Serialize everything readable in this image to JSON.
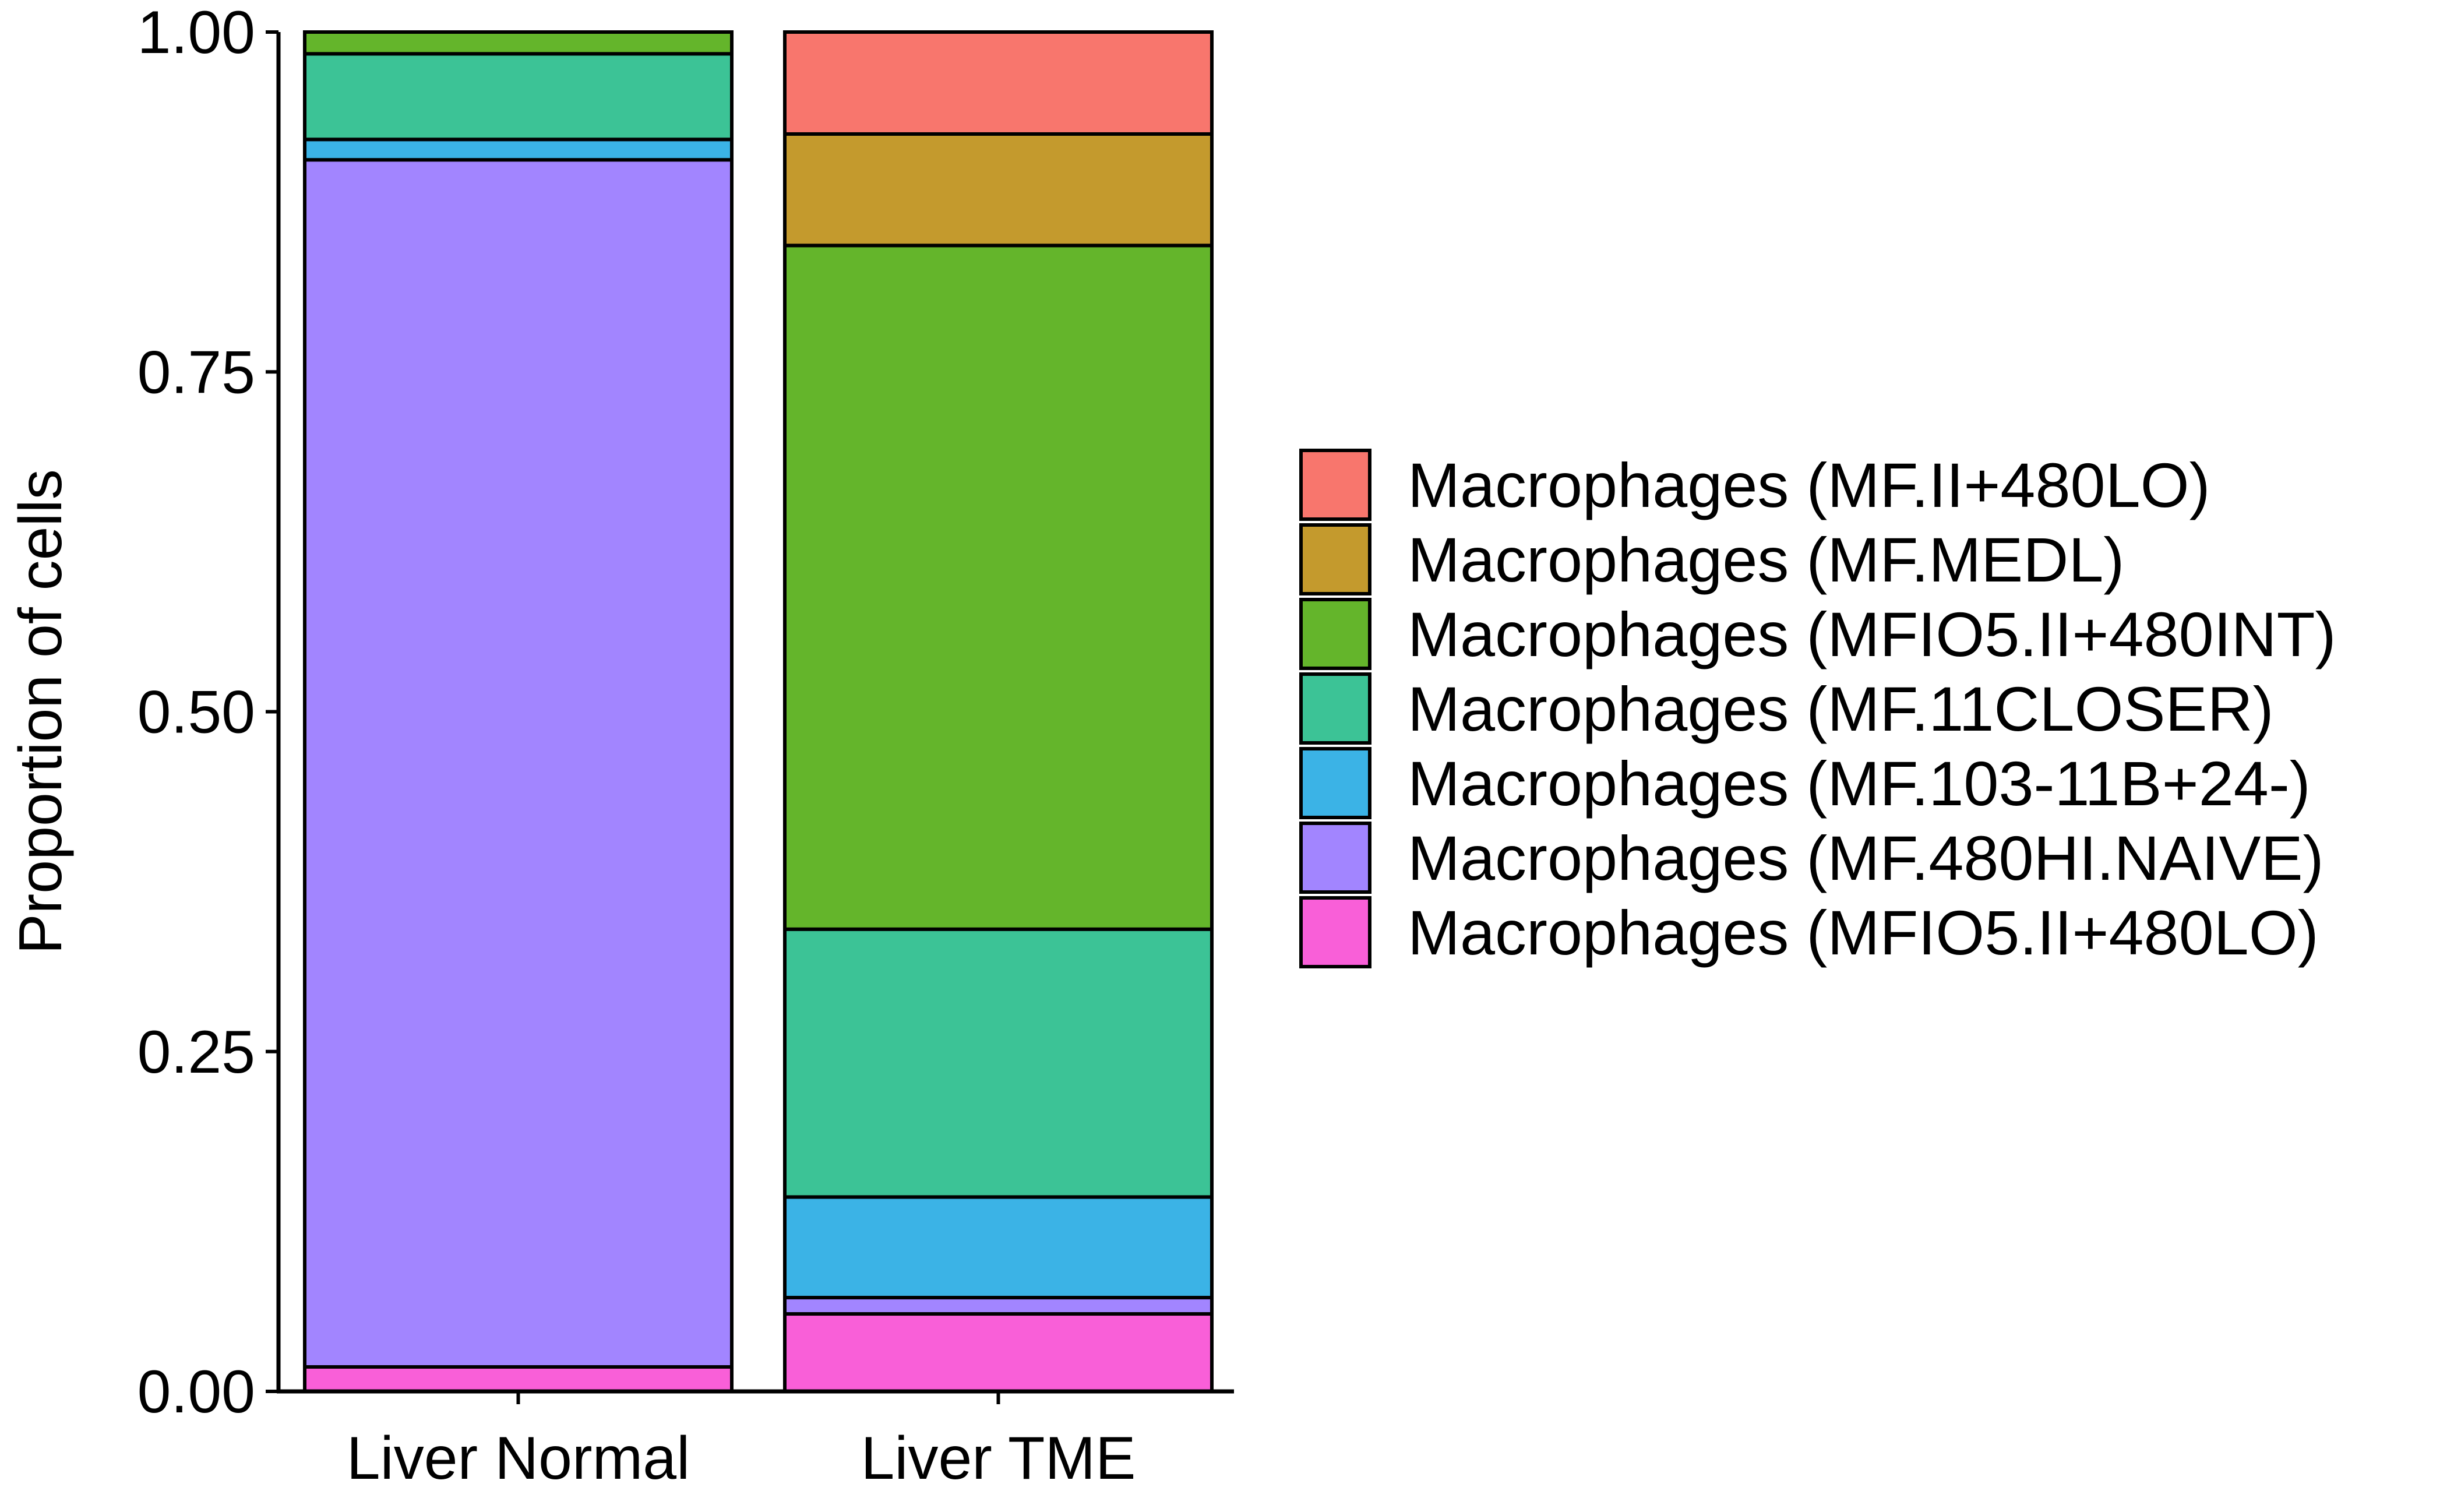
{
  "chart_data": {
    "type": "bar",
    "stacked": true,
    "categories": [
      "Liver Normal",
      "Liver TME"
    ],
    "ylabel": "Proportion of cells",
    "xlabel": "",
    "ylim": [
      0,
      1
    ],
    "yticks": [
      0.0,
      0.25,
      0.5,
      0.75,
      1.0
    ],
    "ytick_labels": [
      "0.00",
      "0.25",
      "0.50",
      "0.75",
      "1.00"
    ],
    "grid": false,
    "legend_position": "right",
    "series": [
      {
        "name": "Macrophages (MF.II+480LO)",
        "color": "#F8766D",
        "values": [
          0.0,
          0.075
        ]
      },
      {
        "name": "Macrophages (MF.MEDL)",
        "color": "#C49A2D",
        "values": [
          0.0,
          0.082
        ]
      },
      {
        "name": "Macrophages (MFIO5.II+480INT)",
        "color": "#64B52B",
        "values": [
          0.016,
          0.503
        ]
      },
      {
        "name": "Macrophages (MF.11CLOSER)",
        "color": "#3CC396",
        "values": [
          0.063,
          0.197
        ]
      },
      {
        "name": "Macrophages (MF.103-11B+24-)",
        "color": "#3BB3E6",
        "values": [
          0.015,
          0.074
        ]
      },
      {
        "name": "Macrophages (MF.480HI.NAIVE)",
        "color": "#A285FF",
        "values": [
          0.888,
          0.012
        ]
      },
      {
        "name": "Macrophages (MFIO5.II+480LO)",
        "color": "#F95FD8",
        "values": [
          0.018,
          0.057
        ]
      }
    ]
  }
}
